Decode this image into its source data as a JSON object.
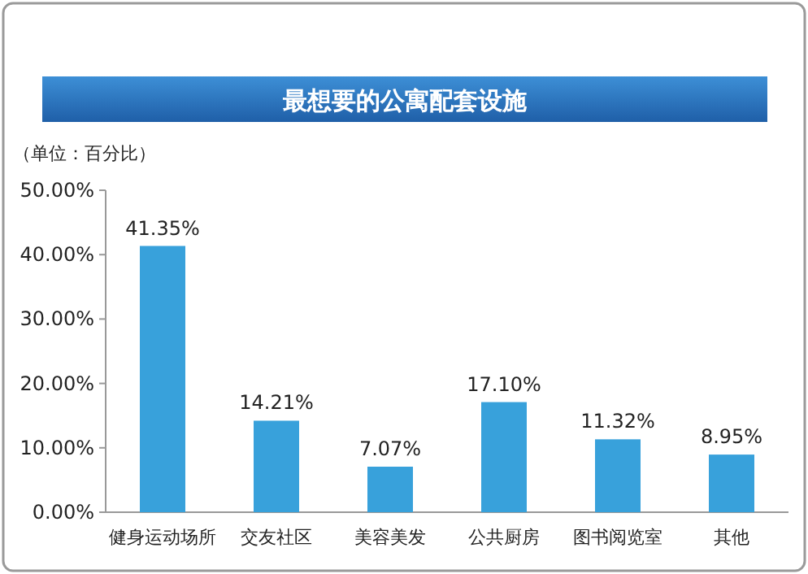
{
  "chart_data": {
    "type": "bar",
    "title": "最想要的公寓配套设施",
    "annotations": [
      "（单位：百分比）"
    ],
    "categories": [
      "健身运动场所",
      "交友社区",
      "美容美发",
      "公共厨房",
      "图书阅览室",
      "其他"
    ],
    "values": [
      41.35,
      14.21,
      7.07,
      17.1,
      11.32,
      8.95
    ],
    "value_labels": [
      "41.35%",
      "14.21%",
      "7.07%",
      "17.10%",
      "11.32%",
      "8.95%"
    ],
    "color": "#38a1db",
    "ylim": [
      0,
      50
    ],
    "yticks": [
      {
        "value": 0,
        "label": "0.00%"
      },
      {
        "value": 10,
        "label": "10.00%"
      },
      {
        "value": 20,
        "label": "20.00%"
      },
      {
        "value": 30,
        "label": "30.00%"
      },
      {
        "value": 40,
        "label": "40.00%"
      },
      {
        "value": 50,
        "label": "50.00%"
      }
    ]
  }
}
